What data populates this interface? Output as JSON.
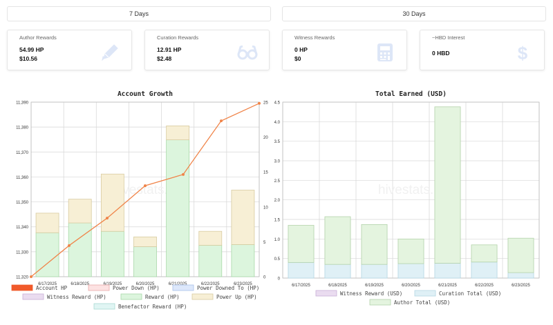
{
  "periods": {
    "p1": "7 Days",
    "p2": "30 Days"
  },
  "cards": [
    {
      "title": "Author Rewards",
      "line1": "54.99 HP",
      "line2": "$10.56",
      "icon": "pencil-icon"
    },
    {
      "title": "Curation Rewards",
      "line1": "12.91 HP",
      "line2": "$2.48",
      "icon": "glasses-icon"
    },
    {
      "title": "Witness Rewards",
      "line1": "0 HP",
      "line2": "$0",
      "icon": "calculator-icon"
    },
    {
      "title": "~HBD Interest",
      "line1": "0 HBD",
      "line2": "",
      "icon": "dollar-icon"
    }
  ],
  "watermark": "hivestats.io",
  "colors": {
    "account_line": "#f08449",
    "reward_fill": "#dcf5dd",
    "reward_stroke": "#a8d8a8",
    "powerup_fill": "#f7efd5",
    "powerup_stroke": "#d8cba0",
    "curation_fill": "#dff0f6",
    "curation_stroke": "#b3d6e3",
    "author_fill": "#e4f4df",
    "author_stroke": "#b3d2aa",
    "icon": "#dde6f7"
  },
  "chart_data": [
    {
      "type": "bar",
      "title": "Account Growth",
      "categories": [
        "6/17/2025",
        "6/18/2025",
        "6/19/2025",
        "6/20/2025",
        "6/21/2025",
        "6/22/2025",
        "6/23/2025"
      ],
      "ylim_left": [
        11320,
        11390
      ],
      "yticks_left": [
        "11,320",
        "11,330",
        "11,340",
        "11,350",
        "11,360",
        "11,370",
        "11,380",
        "11,390"
      ],
      "ylim_right": [
        0,
        25
      ],
      "yticks_right": [
        "0",
        "5",
        "10",
        "15",
        "20",
        "25"
      ],
      "grid": true,
      "legend_position": "bottom",
      "legend": [
        "Account HP",
        "Power Down (HP)",
        "Power Downed To (HP)",
        "Witness Reward (HP)",
        "Reward (HP)",
        "Power Up (HP)",
        "Benefactor Reward (HP)"
      ],
      "series": [
        {
          "name": "Account HP",
          "kind": "line",
          "axis": "left",
          "values": [
            11320.0,
            11332.5,
            11343.5,
            11356.5,
            11361.0,
            11382.5,
            11389.5
          ]
        },
        {
          "name": "Reward (HP)",
          "kind": "bar",
          "axis": "right",
          "values": [
            6.3,
            7.7,
            6.5,
            4.3,
            19.6,
            4.5,
            4.6
          ]
        },
        {
          "name": "Power Up (HP)",
          "kind": "bar",
          "axis": "right",
          "values": [
            2.8,
            3.4,
            8.2,
            1.4,
            2.0,
            2.0,
            7.8
          ]
        }
      ]
    },
    {
      "type": "bar",
      "title": "Total Earned (USD)",
      "categories": [
        "6/17/2025",
        "6/18/2025",
        "6/19/2025",
        "6/20/2025",
        "6/21/2025",
        "6/22/2025",
        "6/23/2025"
      ],
      "ylim": [
        0,
        4.5
      ],
      "yticks": [
        "0",
        "0.5",
        "1.0",
        "1.5",
        "2.0",
        "2.5",
        "3.0",
        "3.5",
        "4.0",
        "4.5"
      ],
      "grid": true,
      "legend_position": "bottom",
      "legend": [
        "Witness Reward (USD)",
        "Curation Total (USD)",
        "Author Total (USD)"
      ],
      "series": [
        {
          "name": "Curation Total (USD)",
          "values": [
            0.4,
            0.35,
            0.35,
            0.37,
            0.38,
            0.41,
            0.14
          ]
        },
        {
          "name": "Author Total (USD)",
          "values": [
            0.95,
            1.22,
            1.02,
            0.63,
            4.0,
            0.44,
            0.88
          ]
        }
      ]
    }
  ]
}
